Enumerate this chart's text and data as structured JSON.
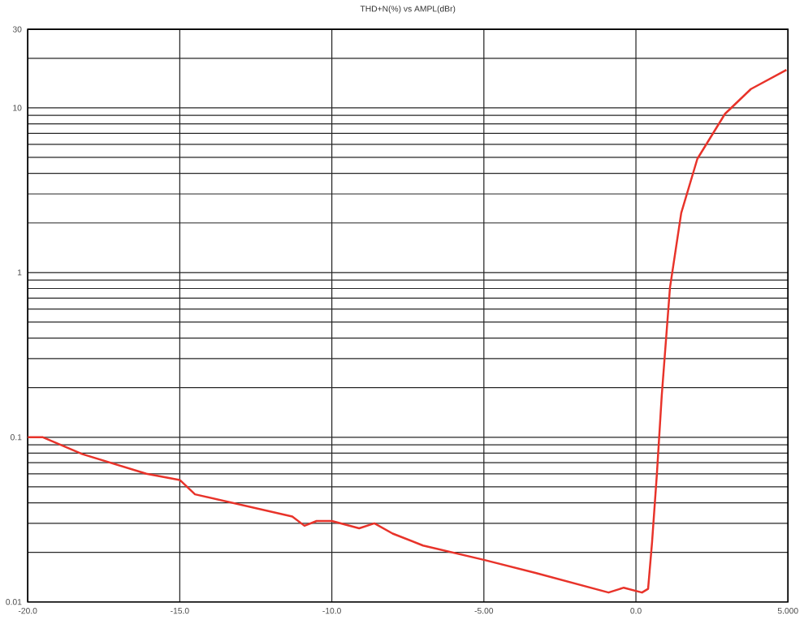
{
  "chart_data": {
    "type": "line",
    "title": "THD+N(%)     vs     AMPL(dBr)",
    "x": [
      -20,
      -19.5,
      -18.2,
      -16.1,
      -15,
      -14.5,
      -11.3,
      -10.9,
      -10.5,
      -10,
      -9.1,
      -8.6,
      -8,
      -7,
      -5,
      -3.3,
      -0.9,
      -0.4,
      0.2,
      0.4,
      0.53,
      0.69,
      0.85,
      1.12,
      1.49,
      2.02,
      2.93,
      3.78,
      4.95
    ],
    "series": [
      {
        "color": "#e8332a",
        "values": [
          0.1,
          0.1,
          0.079,
          0.06,
          0.055,
          0.045,
          0.033,
          0.029,
          0.031,
          0.031,
          0.028,
          0.03,
          0.026,
          0.022,
          0.018,
          0.015,
          0.0114,
          0.0122,
          0.0114,
          0.012,
          0.023,
          0.06,
          0.18,
          0.81,
          2.3,
          4.9,
          9.2,
          13,
          17
        ]
      }
    ],
    "xlim": [
      -20,
      5
    ],
    "xticks": [
      {
        "value": -20,
        "label": "-20.0"
      },
      {
        "value": -15,
        "label": "-15.0"
      },
      {
        "value": -10,
        "label": "-10.0"
      },
      {
        "value": -5,
        "label": "-5.00"
      },
      {
        "value": 0,
        "label": "0.0"
      },
      {
        "value": 5,
        "label": "5.000"
      }
    ],
    "ylim": [
      0.01,
      30
    ],
    "yticks": [
      {
        "value": 0.01,
        "label": "0.01"
      },
      0.1,
      1,
      10,
      30
    ],
    "log": "y",
    "grid": true,
    "marker": "none",
    "line_style": "solid"
  }
}
